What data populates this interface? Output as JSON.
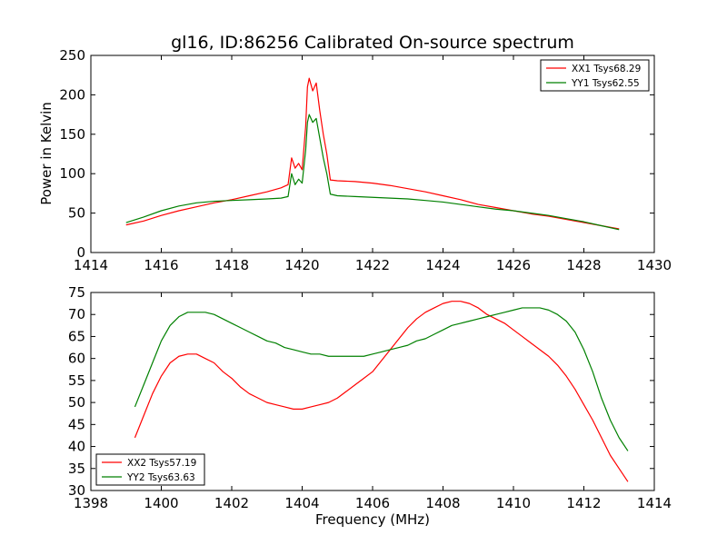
{
  "chart_data": [
    {
      "type": "line",
      "title": "gl16, ID:86256 Calibrated On-source spectrum",
      "xlabel": "",
      "ylabel": "Power in Kelvin",
      "xlim": [
        1414,
        1430
      ],
      "ylim": [
        0,
        250
      ],
      "xticks": [
        1414,
        1416,
        1418,
        1420,
        1422,
        1424,
        1426,
        1428,
        1430
      ],
      "yticks": [
        0,
        50,
        100,
        150,
        200,
        250
      ],
      "grid": false,
      "legend_position": "top-right",
      "series": [
        {
          "name": "XX1 Tsys68.29",
          "color": "#ff0000",
          "x": [
            1415.0,
            1415.5,
            1416.0,
            1416.5,
            1417.0,
            1417.5,
            1418.0,
            1418.5,
            1419.0,
            1419.4,
            1419.6,
            1419.7,
            1419.8,
            1419.9,
            1420.0,
            1420.1,
            1420.15,
            1420.2,
            1420.3,
            1420.4,
            1420.5,
            1420.6,
            1420.7,
            1420.8,
            1421.0,
            1421.5,
            1422.0,
            1422.5,
            1423.0,
            1423.5,
            1424.0,
            1424.5,
            1425.0,
            1425.5,
            1426.0,
            1426.5,
            1427.0,
            1427.5,
            1428.0,
            1428.5,
            1429.0
          ],
          "y": [
            35,
            40,
            47,
            53,
            58,
            63,
            67,
            72,
            77,
            82,
            86,
            120,
            107,
            113,
            105,
            160,
            210,
            221,
            205,
            215,
            180,
            150,
            125,
            92,
            91,
            90,
            88,
            85,
            81,
            77,
            72,
            67,
            61,
            57,
            53,
            49,
            46,
            42,
            38,
            34,
            30
          ]
        },
        {
          "name": "YY1 Tsys62.55",
          "color": "#008000",
          "x": [
            1415.0,
            1415.5,
            1416.0,
            1416.5,
            1417.0,
            1417.5,
            1418.0,
            1418.5,
            1419.0,
            1419.4,
            1419.6,
            1419.7,
            1419.8,
            1419.9,
            1420.0,
            1420.1,
            1420.15,
            1420.2,
            1420.3,
            1420.4,
            1420.5,
            1420.6,
            1420.7,
            1420.8,
            1421.0,
            1421.5,
            1422.0,
            1422.5,
            1423.0,
            1423.5,
            1424.0,
            1424.5,
            1425.0,
            1425.5,
            1426.0,
            1426.5,
            1427.0,
            1427.5,
            1428.0,
            1428.5,
            1429.0
          ],
          "y": [
            38,
            45,
            53,
            59,
            63,
            65,
            66,
            67,
            68,
            69,
            71,
            100,
            86,
            93,
            88,
            130,
            165,
            175,
            165,
            170,
            145,
            120,
            100,
            74,
            72,
            71,
            70,
            69,
            68,
            66,
            64,
            61,
            58,
            55,
            53,
            50,
            47,
            43,
            39,
            34,
            29
          ]
        }
      ]
    },
    {
      "type": "line",
      "title": "",
      "xlabel": "Frequency (MHz)",
      "ylabel": "",
      "xlim": [
        1398,
        1414
      ],
      "ylim": [
        30,
        75
      ],
      "xticks": [
        1398,
        1400,
        1402,
        1404,
        1406,
        1408,
        1410,
        1412,
        1414
      ],
      "yticks": [
        30,
        35,
        40,
        45,
        50,
        55,
        60,
        65,
        70,
        75
      ],
      "grid": false,
      "legend_position": "bottom-left",
      "series": [
        {
          "name": "XX2 Tsys57.19",
          "color": "#ff0000",
          "x": [
            1399.25,
            1399.5,
            1399.75,
            1400.0,
            1400.25,
            1400.5,
            1400.75,
            1401.0,
            1401.25,
            1401.5,
            1401.75,
            1402.0,
            1402.25,
            1402.5,
            1402.75,
            1403.0,
            1403.25,
            1403.5,
            1403.75,
            1404.0,
            1404.25,
            1404.5,
            1404.75,
            1405.0,
            1405.25,
            1405.5,
            1405.75,
            1406.0,
            1406.25,
            1406.5,
            1406.75,
            1407.0,
            1407.25,
            1407.5,
            1407.75,
            1408.0,
            1408.25,
            1408.5,
            1408.75,
            1409.0,
            1409.25,
            1409.5,
            1409.75,
            1410.0,
            1410.25,
            1410.5,
            1410.75,
            1411.0,
            1411.25,
            1411.5,
            1411.75,
            1412.0,
            1412.25,
            1412.5,
            1412.75,
            1413.0,
            1413.25
          ],
          "y": [
            42,
            47,
            52,
            56,
            59,
            60.5,
            61,
            61,
            60,
            59,
            57,
            55.5,
            53.5,
            52,
            51,
            50,
            49.5,
            49,
            48.5,
            48.5,
            49,
            49.5,
            50,
            51,
            52.5,
            54,
            55.5,
            57,
            59.5,
            62,
            64.5,
            67,
            69,
            70.5,
            71.5,
            72.5,
            73,
            73,
            72.5,
            71.5,
            70,
            69,
            68,
            66.5,
            65,
            63.5,
            62,
            60.5,
            58.5,
            56,
            53,
            49.5,
            46,
            42,
            38,
            35,
            32
          ]
        },
        {
          "name": "YY2 Tsys63.63",
          "color": "#008000",
          "x": [
            1399.25,
            1399.5,
            1399.75,
            1400.0,
            1400.25,
            1400.5,
            1400.75,
            1401.0,
            1401.25,
            1401.5,
            1401.75,
            1402.0,
            1402.25,
            1402.5,
            1402.75,
            1403.0,
            1403.25,
            1403.5,
            1403.75,
            1404.0,
            1404.25,
            1404.5,
            1404.75,
            1405.0,
            1405.25,
            1405.5,
            1405.75,
            1406.0,
            1406.25,
            1406.5,
            1406.75,
            1407.0,
            1407.25,
            1407.5,
            1407.75,
            1408.0,
            1408.25,
            1408.5,
            1408.75,
            1409.0,
            1409.25,
            1409.5,
            1409.75,
            1410.0,
            1410.25,
            1410.5,
            1410.75,
            1411.0,
            1411.25,
            1411.5,
            1411.75,
            1412.0,
            1412.25,
            1412.5,
            1412.75,
            1413.0,
            1413.25
          ],
          "y": [
            49,
            54,
            59,
            64,
            67.5,
            69.5,
            70.5,
            70.5,
            70.5,
            70,
            69,
            68,
            67,
            66,
            65,
            64,
            63.5,
            62.5,
            62,
            61.5,
            61,
            61,
            60.5,
            60.5,
            60.5,
            60.5,
            60.5,
            61,
            61.5,
            62,
            62.5,
            63,
            64,
            64.5,
            65.5,
            66.5,
            67.5,
            68,
            68.5,
            69,
            69.5,
            70,
            70.5,
            71,
            71.5,
            71.5,
            71.5,
            71,
            70,
            68.5,
            66,
            62,
            57,
            51,
            46,
            42,
            39
          ]
        }
      ]
    }
  ]
}
